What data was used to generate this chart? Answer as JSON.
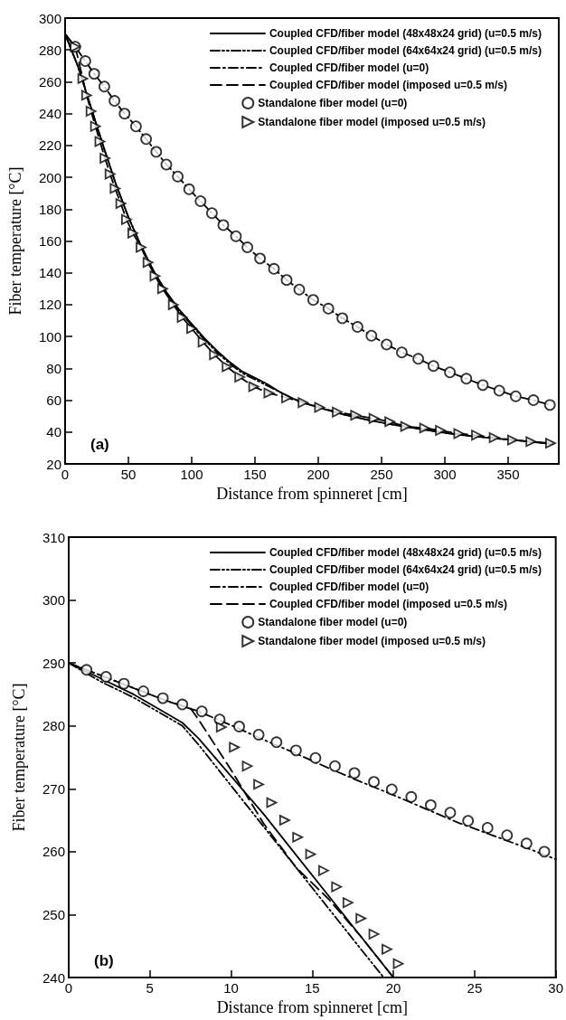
{
  "chart_data": [
    {
      "type": "line",
      "xlabel": "Distance from spinneret [cm]",
      "ylabel": "Fiber temperature [°C]",
      "xlim": [
        0,
        390
      ],
      "xticks": [
        0,
        50,
        100,
        150,
        200,
        250,
        300,
        350
      ],
      "ylim": [
        20,
        300
      ],
      "yticks": [
        20,
        40,
        60,
        80,
        100,
        120,
        140,
        160,
        180,
        200,
        220,
        240,
        260,
        280,
        300
      ],
      "grid": false,
      "legend": "top right",
      "annotations": [
        "(a)"
      ],
      "series": [
        {
          "name": "Coupled CFD/fiber model (48x48x24 grid) (u=0.5 m/s)",
          "type": "line",
          "color": "#000000",
          "marker": "none",
          "line_style": "solid",
          "x": [
            0,
            10,
            20,
            30,
            40,
            50,
            60,
            70,
            80,
            90,
            100,
            110,
            120,
            130,
            140,
            150,
            160,
            170,
            180,
            190,
            200,
            220,
            240,
            260,
            280,
            300,
            320,
            340,
            360,
            385
          ],
          "values": [
            290,
            270,
            245,
            220,
            196,
            175,
            157,
            141,
            128,
            117,
            108,
            99,
            91,
            84,
            78,
            74,
            70,
            65,
            61,
            58,
            55.5,
            51,
            47.5,
            44.5,
            42,
            39.5,
            37.5,
            36,
            34.5,
            32.5
          ]
        },
        {
          "name": "Coupled CFD/fiber model (64x64x24 grid) (u=0.5 m/s)",
          "type": "line",
          "color": "#000000",
          "marker": "none",
          "line_style": "dashdotdot",
          "x": [
            0,
            10,
            20,
            30,
            40,
            50,
            60,
            70,
            80,
            90,
            100,
            110,
            120,
            130,
            140,
            150,
            160,
            170,
            180,
            190,
            200,
            220,
            240,
            260,
            280,
            300,
            320,
            340,
            360,
            385
          ],
          "values": [
            290,
            270,
            245,
            220,
            196,
            175,
            157,
            141,
            127,
            116,
            107,
            98,
            90,
            83,
            77,
            73,
            69,
            65,
            61,
            58,
            55.5,
            51,
            47.5,
            44.5,
            42,
            39.5,
            37.5,
            36,
            34.5,
            32.5
          ]
        },
        {
          "name": "Coupled CFD/fiber model (u=0)",
          "type": "line",
          "color": "#000000",
          "marker": "none",
          "line_style": "dashdot",
          "x": [
            0,
            8,
            16,
            23,
            31,
            39,
            47,
            56,
            64,
            72,
            80,
            89,
            98,
            107,
            116,
            125,
            135,
            144,
            154,
            165,
            175,
            185,
            196,
            208,
            219,
            231,
            242,
            254,
            266,
            279,
            291,
            304,
            317,
            330,
            343,
            356,
            370,
            383
          ],
          "values": [
            290,
            282,
            273,
            265,
            257,
            248,
            240,
            232,
            224,
            216,
            208,
            200.5,
            192.5,
            185,
            177.5,
            170,
            163,
            156,
            149,
            142.5,
            135.5,
            129.5,
            123,
            117.5,
            111.5,
            106,
            100.5,
            95,
            90,
            86,
            81.5,
            77.5,
            73.5,
            69.5,
            66,
            62.5,
            60,
            57
          ]
        },
        {
          "name": "Coupled CFD/fiber model (imposed u=0.5 m/s)",
          "type": "line",
          "color": "#000000",
          "marker": "none",
          "line_style": "dashed",
          "x": [
            0,
            8,
            14,
            17,
            20.5,
            24,
            27.5,
            31.5,
            35.5,
            39.5,
            44,
            48.5,
            53.5,
            60,
            65.5,
            71,
            77,
            85.5,
            92.5,
            100,
            109,
            118,
            128,
            138,
            149,
            161,
            175,
            188,
            201,
            215,
            229.5,
            244,
            256.5,
            269,
            284,
            296.5,
            311,
            325,
            339,
            353.5,
            368,
            383.5
          ],
          "values": [
            290,
            282,
            262,
            251.5,
            241.5,
            232,
            222.5,
            212,
            202,
            193,
            183.5,
            173.5,
            165,
            156,
            146.5,
            138,
            130,
            120,
            112,
            105,
            96.5,
            88.5,
            81,
            74.5,
            68.5,
            64.5,
            61.5,
            58.5,
            55.5,
            52.5,
            50.5,
            48.5,
            46.5,
            43.5,
            42.5,
            41,
            39,
            38,
            36.5,
            35,
            34,
            33
          ]
        },
        {
          "name": "Standalone fiber model (u=0)",
          "type": "scatter",
          "color": "#000000",
          "marker": "circle",
          "x": [
            8,
            16,
            23,
            31,
            39,
            47,
            56,
            64,
            72,
            80,
            89,
            98,
            107,
            116,
            125,
            135,
            144,
            154,
            165,
            175,
            185,
            196,
            208,
            219,
            231,
            242,
            254,
            266,
            279,
            291,
            304,
            317,
            330,
            343,
            356,
            370,
            383
          ],
          "values": [
            282,
            273,
            265,
            257,
            248,
            240,
            232,
            224,
            216,
            208,
            200.5,
            192.5,
            185,
            177.5,
            170,
            163,
            156,
            149,
            142.5,
            135.5,
            129.5,
            123,
            117.5,
            111.5,
            106,
            100.5,
            95,
            90,
            86,
            81.5,
            77.5,
            73.5,
            69.5,
            66,
            62.5,
            60,
            57
          ]
        },
        {
          "name": "Standalone fiber model (imposed u=0.5 m/s)",
          "type": "scatter",
          "color": "#000000",
          "marker": "triangle",
          "x": [
            8,
            14,
            17,
            20.5,
            24,
            27.5,
            31.5,
            35.5,
            39.5,
            44,
            48.5,
            53.5,
            60,
            65.5,
            71,
            77,
            85.5,
            92.5,
            100,
            109,
            118,
            128,
            138,
            149,
            161,
            175,
            188,
            201,
            215,
            229.5,
            244,
            256.5,
            269,
            284,
            296.5,
            311,
            325,
            339,
            353.5,
            368,
            383.5
          ],
          "values": [
            282,
            262,
            251.5,
            241.5,
            232,
            222.5,
            212,
            202,
            193,
            183.5,
            173.5,
            165,
            156,
            146.5,
            138,
            130,
            120,
            112,
            105,
            96.5,
            88.5,
            81,
            74.5,
            68.5,
            64.5,
            61.5,
            58.5,
            55.5,
            52.5,
            50.5,
            48.5,
            46.5,
            43.5,
            42.5,
            41,
            39,
            38,
            36.5,
            35,
            34,
            33
          ]
        }
      ]
    },
    {
      "type": "line",
      "xlabel": "Distance from spinneret [cm]",
      "ylabel": "Fiber temperature [°C]",
      "xlim": [
        0,
        30
      ],
      "xticks": [
        0,
        5,
        10,
        15,
        20,
        25,
        30
      ],
      "ylim": [
        240,
        310
      ],
      "yticks": [
        240,
        250,
        260,
        270,
        280,
        290,
        300,
        310
      ],
      "grid": false,
      "legend": "top right",
      "annotations": [
        "(b)"
      ],
      "series": [
        {
          "name": "Coupled CFD/fiber model (48x48x24 grid) (u=0.5 m/s)",
          "type": "line",
          "color": "#000000",
          "marker": "none",
          "line_style": "solid",
          "x": [
            0,
            2,
            4,
            6,
            7,
            8,
            10,
            12,
            14,
            16,
            18,
            20
          ],
          "values": [
            290,
            287.5,
            285,
            282,
            280.5,
            278,
            272,
            266,
            259.5,
            253,
            246.5,
            240
          ]
        },
        {
          "name": "Coupled CFD/fiber model (64x64x24 grid) (u=0.5 m/s)",
          "type": "line",
          "color": "#000000",
          "marker": "none",
          "line_style": "dashdotdot",
          "x": [
            0,
            2,
            4,
            6,
            7,
            8,
            10,
            12,
            14,
            16,
            18,
            19.4
          ],
          "values": [
            290,
            287,
            284.5,
            281.5,
            280,
            277,
            270.5,
            264,
            257.5,
            251,
            244.5,
            240
          ]
        },
        {
          "name": "Coupled CFD/fiber model (u=0)",
          "type": "line",
          "color": "#000000",
          "marker": "none",
          "line_style": "dashdot",
          "x": [
            0,
            2,
            4,
            6,
            8,
            10,
            12,
            14,
            16,
            18,
            20,
            22,
            24,
            26,
            28,
            30
          ],
          "values": [
            290,
            288,
            286,
            284,
            282.3,
            280.1,
            277.8,
            275.6,
            273.3,
            271.1,
            269,
            266.8,
            264.6,
            262.7,
            260.8,
            258.8
          ]
        },
        {
          "name": "Coupled CFD/fiber model (imposed u=0.5 m/s)",
          "type": "line",
          "color": "#000000",
          "marker": "none",
          "line_style": "dashed",
          "x": [
            0,
            2,
            4,
            6,
            7.5,
            8,
            10,
            12,
            14,
            16,
            18,
            20
          ],
          "values": [
            290,
            288,
            286,
            284,
            282.8,
            281,
            273,
            264.5,
            257.5,
            252.5,
            246.5,
            240
          ]
        },
        {
          "name": "Standalone fiber model (u=0)",
          "type": "scatter",
          "color": "#000000",
          "marker": "circle",
          "x": [
            1.1,
            2.3,
            3.4,
            4.6,
            5.8,
            7,
            8.2,
            9.3,
            10.5,
            11.7,
            12.8,
            14,
            15.2,
            16.4,
            17.6,
            18.8,
            19.9,
            21.1,
            22.3,
            23.5,
            24.6,
            25.8,
            27,
            28.2,
            29.3
          ],
          "values": [
            288.9,
            287.8,
            286.7,
            285.5,
            284.4,
            283.4,
            282.3,
            281,
            279.9,
            278.6,
            277.4,
            276.1,
            274.9,
            273.6,
            272.5,
            271.1,
            269.9,
            268.7,
            267.4,
            266.2,
            264.9,
            263.8,
            262.6,
            261.3,
            260
          ]
        },
        {
          "name": "Standalone fiber model (imposed u=0.5 m/s)",
          "type": "scatter",
          "color": "#000000",
          "marker": "triangle",
          "x": [
            9.4,
            10.2,
            11,
            11.7,
            12.5,
            13.3,
            14.1,
            14.9,
            15.7,
            16.5,
            17.2,
            18,
            18.8,
            19.6,
            20.3
          ],
          "values": [
            279.8,
            276.6,
            273.6,
            270.7,
            267.8,
            265,
            262.3,
            259.6,
            257,
            254.4,
            251.9,
            249.4,
            246.9,
            244.5,
            242.2
          ]
        }
      ]
    }
  ]
}
